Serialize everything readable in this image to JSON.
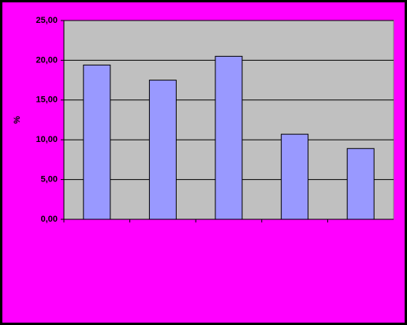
{
  "chart_data": {
    "type": "bar",
    "y_label": "%",
    "categories": [
      null,
      null,
      null,
      null,
      null
    ],
    "values": [
      19.4,
      17.5,
      20.5,
      10.7,
      8.9
    ],
    "color": "#9999ff",
    "ylim": [
      0,
      25
    ],
    "yticks": [
      {
        "value": 0,
        "label": "0,00"
      },
      {
        "value": 5,
        "label": "5,00"
      },
      {
        "value": 10,
        "label": "10,00"
      },
      {
        "value": 15,
        "label": "15,00"
      },
      {
        "value": 20,
        "label": "20,00"
      },
      {
        "value": 25,
        "label": "25,00"
      }
    ],
    "grid": true
  }
}
